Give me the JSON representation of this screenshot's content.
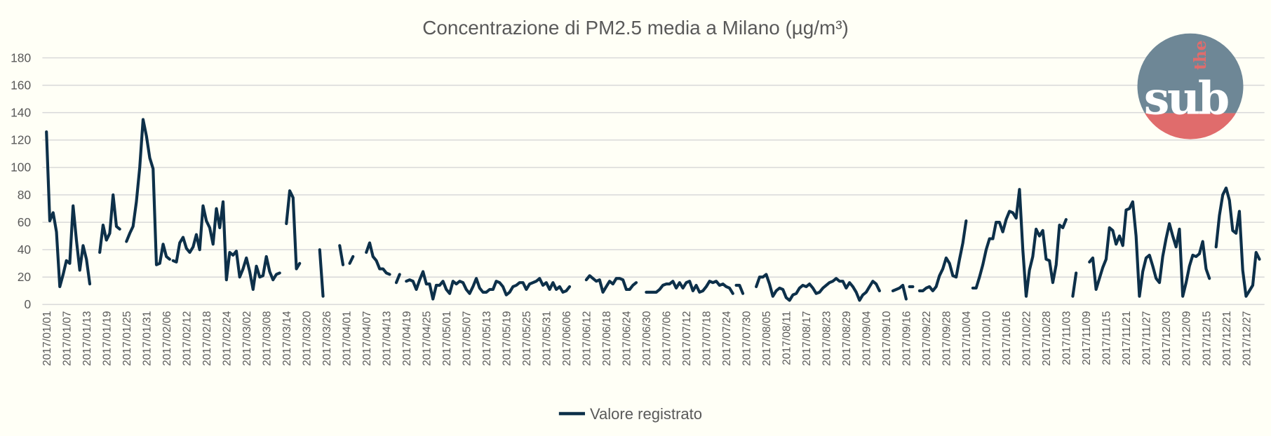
{
  "chart_data": {
    "type": "line",
    "title": "Concentrazione di PM2.5 media a Milano (µg/m³)",
    "xlabel": "",
    "ylabel": "",
    "ylim": [
      0,
      180
    ],
    "yticks": [
      "0",
      "20",
      "40",
      "60",
      "80",
      "100",
      "120",
      "140",
      "160",
      "180"
    ],
    "ytick_values": [
      0,
      20,
      40,
      60,
      80,
      100,
      120,
      140,
      160,
      180
    ],
    "x_start": "2017/01/01",
    "x_days": 365,
    "xtick_step_days": 6,
    "xticks": [
      "2017/01/01",
      "2017/01/07",
      "2017/01/13",
      "2017/01/19",
      "2017/01/25",
      "2017/01/31",
      "2017/02/06",
      "2017/02/12",
      "2017/02/18",
      "2017/02/24",
      "2017/03/02",
      "2017/03/08",
      "2017/03/14",
      "2017/03/20",
      "2017/03/26",
      "2017/04/01",
      "2017/04/07",
      "2017/04/13",
      "2017/04/19",
      "2017/04/25",
      "2017/05/01",
      "2017/05/07",
      "2017/05/13",
      "2017/05/19",
      "2017/05/25",
      "2017/05/31",
      "2017/06/06",
      "2017/06/12",
      "2017/06/18",
      "2017/06/24",
      "2017/06/30",
      "2017/07/06",
      "2017/07/12",
      "2017/07/18",
      "2017/07/24",
      "2017/07/30",
      "2017/08/05",
      "2017/08/11",
      "2017/08/17",
      "2017/08/23",
      "2017/08/29",
      "2017/09/04",
      "2017/09/10",
      "2017/09/16",
      "2017/09/22",
      "2017/09/28",
      "2017/10/04",
      "2017/10/10",
      "2017/10/16",
      "2017/10/22",
      "2017/10/28",
      "2017/11/03",
      "2017/11/09",
      "2017/11/15",
      "2017/11/21",
      "2017/11/27",
      "2017/12/03",
      "2017/12/09",
      "2017/12/15",
      "2017/12/21",
      "2017/12/27"
    ],
    "grid": true,
    "legend_position": "bottom",
    "series": [
      {
        "name": "Valore registrato",
        "color": "#0d3049",
        "segments": [
          {
            "start_day": 0,
            "values": [
              126,
              61,
              67,
              53,
              13,
              22,
              32,
              30,
              72,
              47,
              25,
              43,
              33,
              15
            ]
          },
          {
            "start_day": 16,
            "values": [
              38,
              58,
              47,
              52,
              80,
              57,
              55
            ]
          },
          {
            "start_day": 24,
            "values": [
              46,
              52,
              57,
              75,
              100,
              135,
              123,
              107,
              99,
              29,
              30,
              44,
              35,
              33
            ]
          },
          {
            "start_day": 38,
            "values": [
              32,
              31,
              45,
              49,
              41,
              38,
              42,
              51,
              40,
              72,
              61,
              56,
              44,
              70,
              56,
              75,
              18,
              38,
              36,
              39,
              20,
              26,
              34,
              24,
              11,
              28,
              20,
              21,
              35,
              24,
              18,
              22,
              23
            ]
          },
          {
            "start_day": 72,
            "values": [
              59,
              83,
              78,
              26,
              30
            ]
          },
          {
            "start_day": 82,
            "values": [
              40,
              6
            ]
          },
          {
            "start_day": 88,
            "values": [
              43,
              29
            ]
          },
          {
            "start_day": 91,
            "values": [
              30,
              35
            ]
          },
          {
            "start_day": 96,
            "values": [
              38,
              45,
              35,
              32,
              26,
              26,
              23,
              22
            ]
          },
          {
            "start_day": 105,
            "values": [
              16,
              22
            ]
          },
          {
            "start_day": 108,
            "values": [
              17,
              18,
              17,
              11,
              18,
              24,
              15,
              15,
              4,
              14,
              14,
              17,
              11,
              8,
              17,
              15,
              17,
              16,
              11,
              8,
              13,
              19,
              12,
              9,
              9,
              11,
              11,
              17,
              16,
              13,
              7,
              9,
              13,
              14,
              16,
              16,
              11,
              15,
              16,
              17,
              19,
              14,
              16,
              11,
              16,
              11,
              13,
              9,
              10,
              13
            ]
          },
          {
            "start_day": 162,
            "values": [
              18,
              21,
              19,
              17,
              18,
              9,
              13,
              17,
              15,
              19,
              19,
              18,
              11,
              11,
              14,
              16
            ]
          },
          {
            "start_day": 180,
            "values": [
              9,
              9,
              9,
              9,
              11,
              14,
              15,
              15,
              17,
              12,
              16,
              12,
              16,
              17,
              10,
              14,
              9,
              10,
              13,
              17,
              16,
              17,
              14,
              15,
              13,
              12,
              8
            ]
          },
          {
            "start_day": 207,
            "values": [
              14,
              14,
              8
            ]
          },
          {
            "start_day": 213,
            "values": [
              13,
              20,
              20,
              22,
              15,
              6,
              10,
              12,
              11,
              5,
              3,
              7,
              8,
              12,
              14,
              13,
              15,
              12,
              8,
              9,
              12,
              14,
              16,
              17,
              19,
              17,
              17,
              12,
              16,
              13,
              9,
              3,
              7,
              9,
              13,
              17,
              15,
              10
            ]
          },
          {
            "start_day": 254,
            "values": [
              10,
              11,
              12,
              14,
              4
            ]
          },
          {
            "start_day": 259,
            "values": [
              13,
              13
            ]
          },
          {
            "start_day": 262,
            "values": [
              10,
              10,
              12,
              13,
              10,
              13,
              21,
              26,
              34,
              30,
              21,
              20,
              33,
              45,
              61
            ]
          },
          {
            "start_day": 278,
            "values": [
              12,
              12,
              20,
              29,
              40,
              48,
              48,
              60,
              60,
              53,
              62,
              68,
              67,
              63,
              84,
              40,
              6,
              25,
              35,
              55,
              50,
              54,
              33,
              32,
              16,
              29,
              58,
              56,
              62
            ]
          },
          {
            "start_day": 308,
            "values": [
              6,
              23
            ]
          },
          {
            "start_day": 313,
            "values": [
              31,
              34,
              11,
              19,
              27,
              33,
              56,
              54,
              44,
              50,
              43,
              69,
              70,
              75,
              50,
              6,
              24,
              34,
              36,
              28,
              19,
              16,
              35,
              48,
              59,
              50,
              42,
              55,
              6,
              16,
              28,
              36,
              35,
              37,
              46,
              26,
              19
            ]
          },
          {
            "start_day": 351,
            "values": [
              42,
              65,
              80,
              85,
              76,
              54,
              52,
              68,
              25,
              6,
              10,
              14,
              38,
              33
            ]
          }
        ]
      }
    ]
  },
  "logo": {
    "text_top": "the",
    "text_main": "sub",
    "color_top": "#6e8796",
    "color_bottom": "#e06c6c"
  },
  "legend": {
    "label": "Valore registrato"
  }
}
